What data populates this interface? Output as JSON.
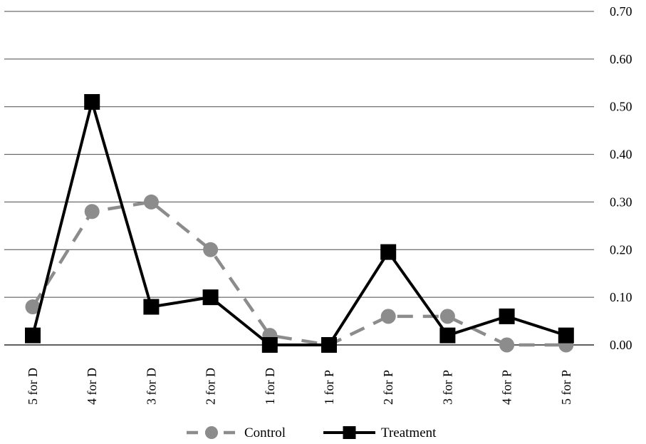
{
  "chart_data": {
    "type": "line",
    "categories": [
      "5 for D",
      "4 for D",
      "3 for D",
      "2 for D",
      "1 for D",
      "1 for P",
      "2 for P",
      "3 for P",
      "4 for P",
      "5 for P"
    ],
    "series": [
      {
        "name": "Control",
        "values": [
          0.08,
          0.28,
          0.3,
          0.2,
          0.02,
          0.0,
          0.06,
          0.06,
          0.0,
          0.0
        ],
        "color": "#8c8c8c",
        "marker": "circle",
        "dash": "dashed"
      },
      {
        "name": "Treatment",
        "values": [
          0.02,
          0.51,
          0.08,
          0.1,
          0.0,
          0.0,
          0.195,
          0.02,
          0.06,
          0.02
        ],
        "color": "#000000",
        "marker": "square",
        "dash": "solid"
      }
    ],
    "ylim": [
      0,
      0.7
    ],
    "yticks": [
      "0.00",
      "0.10",
      "0.20",
      "0.30",
      "0.40",
      "0.50",
      "0.60",
      "0.70"
    ],
    "y_axis_side": "right",
    "grid": true,
    "legend_position": "bottom",
    "title": "",
    "xlabel": "",
    "ylabel": ""
  }
}
